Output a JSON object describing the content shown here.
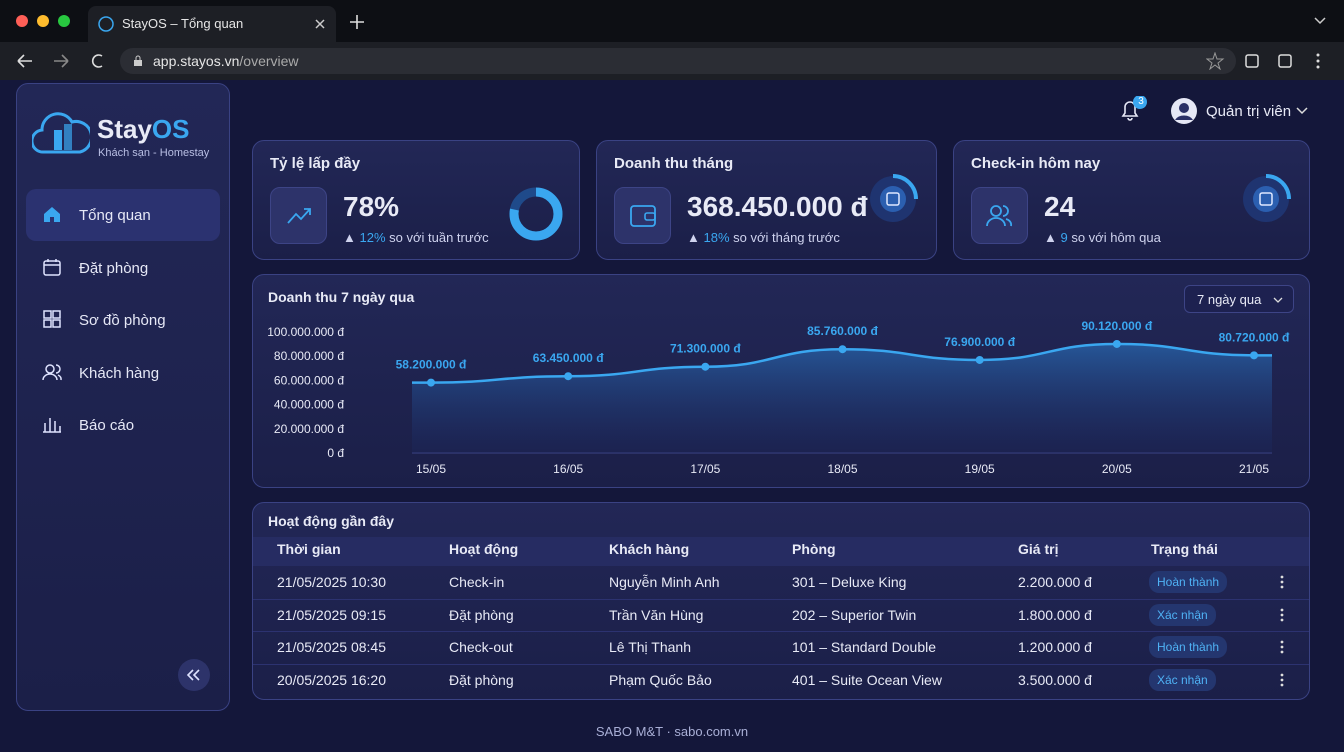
{
  "browser": {
    "tab_title": "StayOS – Tổng quan",
    "url_host": "app.stayos.vn",
    "url_path": "/overview"
  },
  "header": {
    "notification_count": 3,
    "user": "Quản trị viên"
  },
  "sidebar": {
    "brand_prefix": "Stay",
    "brand_suffix": "OS",
    "tagline": "Khách sạn - Homestay",
    "nav": [
      "Tổng quan",
      "Đặt phòng",
      "Sơ đồ phòng",
      "Khách hàng",
      "Báo cáo"
    ]
  },
  "stats": [
    {
      "title": "Tỷ lệ lấp đầy",
      "value": "78%",
      "change": "12%",
      "note": "so với tuần trước"
    },
    {
      "title": "Doanh thu tháng",
      "value": "368.450.000 đ",
      "change": "18%",
      "note": "so với tháng trước"
    },
    {
      "title": "Check-in hôm nay",
      "value": "24",
      "change": "9",
      "note": "so với hôm qua"
    }
  ],
  "chart_data": {
    "type": "line",
    "title": "Doanh thu 7 ngày qua",
    "color": "#3aa7f0",
    "categories": [
      "15/05",
      "16/05",
      "17/05",
      "18/05",
      "19/05",
      "20/05",
      "21/05"
    ],
    "values": [
      58200000,
      63450000,
      71300000,
      85760000,
      76900000,
      90120000,
      80720000
    ],
    "value_labels": [
      "58.200.000 đ",
      "63.450.000 đ",
      "71.300.000 đ",
      "85.760.000 đ",
      "76.900.000 đ",
      "90.120.000 đ",
      "80.720.000 đ"
    ],
    "ylim": [
      0,
      100000000
    ],
    "yticks": [
      {
        "value": 0,
        "label": "0 đ"
      },
      {
        "value": 20000000,
        "label": "20.000.000 đ"
      },
      {
        "value": 40000000,
        "label": "40.000.000 đ"
      },
      {
        "value": 60000000,
        "label": "60.000.000 đ"
      },
      {
        "value": 80000000,
        "label": "80.000.000 đ"
      },
      {
        "value": 100000000,
        "label": "100.000.000 đ"
      }
    ]
  },
  "period_select": "7 ngày qua",
  "activity": {
    "title": "Hoạt động gần đây",
    "columns": [
      "Thời gian",
      "Hoạt động",
      "Khách hàng",
      "Phòng",
      "Giá trị",
      "Trạng thái"
    ],
    "rows": [
      [
        "21/05/2025 10:30",
        "Check-in",
        "Nguyễn Minh Anh",
        "301 – Deluxe King",
        "2.200.000 đ",
        "Hoàn thành"
      ],
      [
        "21/05/2025 09:15",
        "Đặt phòng",
        "Trần Văn Hùng",
        "202 – Superior Twin",
        "1.800.000 đ",
        "Xác nhận"
      ],
      [
        "21/05/2025 08:45",
        "Check-out",
        "Lê Thị Thanh",
        "101 – Standard Double",
        "1.200.000 đ",
        "Hoàn thành"
      ],
      [
        "20/05/2025 16:20",
        "Đặt phòng",
        "Phạm Quốc Bảo",
        "401 – Suite Ocean View",
        "3.500.000 đ",
        "Xác nhận"
      ]
    ]
  },
  "footer": "SABO M&T · sabo.com.vn"
}
